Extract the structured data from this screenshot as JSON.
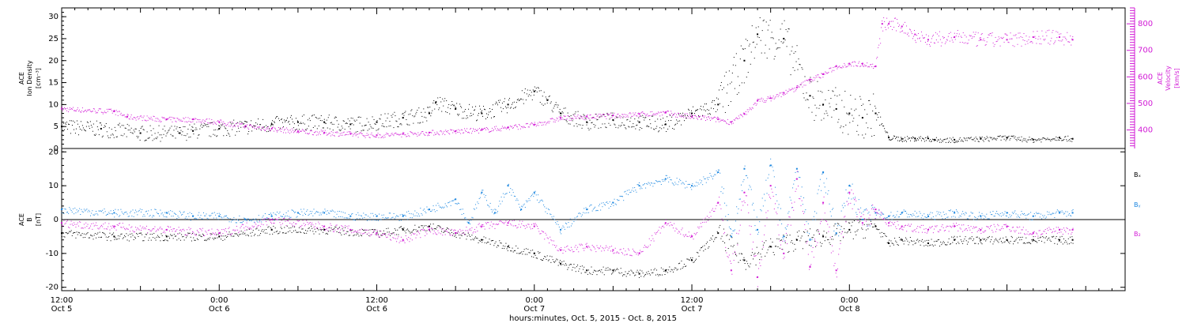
{
  "colors": {
    "bx": "#000000",
    "by": "#1a86e0",
    "bz": "#d21bd6",
    "density": "#000000",
    "velocity": "#d21bd6",
    "axis": "#000000"
  },
  "x_axis": {
    "footer": "hours:minutes, Oct.  5, 2015 - Oct.  8, 2015",
    "ticks": [
      {
        "time": "12:00",
        "date": "Oct 5"
      },
      {
        "time": "0:00",
        "date": "Oct 6"
      },
      {
        "time": "12:00",
        "date": "Oct 6"
      },
      {
        "time": "0:00",
        "date": "Oct 7"
      },
      {
        "time": "12:00",
        "date": "Oct 7"
      },
      {
        "time": "0:00",
        "date": "Oct 8"
      }
    ]
  },
  "panel1": {
    "left_label": [
      "ACE",
      "Ion Density",
      "[cm⁻³]"
    ],
    "right_label": [
      "ACE",
      "Velocity",
      "[km/s]"
    ]
  },
  "panel2": {
    "left_label": [
      "ACE",
      "B",
      "[nT]"
    ],
    "legend": [
      "Bₓ",
      "Bᵧ",
      "B₂"
    ]
  },
  "chart_data": [
    {
      "type": "scatter",
      "panel": "top",
      "x_unit": "hours since Oct 5 12:00",
      "xlim": [
        0,
        81
      ],
      "ylim": [
        0,
        32
      ],
      "y2lim": [
        330,
        860
      ],
      "yticks": [
        0,
        5,
        10,
        15,
        20,
        25,
        30
      ],
      "y2ticks": [
        400,
        500,
        600,
        700,
        800
      ],
      "series": [
        {
          "name": "Ion Density",
          "axis": "left",
          "x": [
            0,
            3,
            6,
            9,
            10,
            12,
            14,
            16,
            18,
            20,
            22,
            24,
            26,
            28,
            28.5,
            30,
            32,
            34,
            36,
            37,
            38,
            40,
            42,
            44,
            46,
            48,
            50,
            52,
            53,
            55,
            57,
            58,
            59,
            60,
            61,
            62,
            63,
            64,
            65,
            66,
            66.5,
            68,
            70,
            72,
            74,
            76,
            77
          ],
          "y": [
            5,
            4.5,
            3.5,
            3.5,
            4,
            4.5,
            5,
            5.5,
            6,
            6,
            5.5,
            6,
            7,
            8,
            10.5,
            9,
            8,
            10,
            13,
            11,
            8,
            6,
            6.5,
            6,
            5.5,
            8,
            10,
            20,
            26,
            25,
            12,
            10,
            9,
            8,
            7,
            8,
            2.5,
            2.2,
            2.3,
            2.3,
            2.0,
            2.0,
            2.2,
            2.5,
            2.0,
            2.5,
            2.2
          ]
        },
        {
          "name": "Velocity",
          "axis": "right",
          "x": [
            0,
            4,
            5,
            8,
            10,
            12,
            14,
            16,
            18,
            20,
            22,
            24,
            26,
            28,
            30,
            32,
            34,
            36,
            38,
            40,
            42,
            44,
            46,
            48,
            50,
            51,
            52,
            53,
            54,
            55,
            56,
            57,
            58,
            59,
            60,
            61,
            62,
            62.5,
            63,
            64,
            65,
            66,
            68,
            70,
            72,
            74,
            76,
            77
          ],
          "y": [
            480,
            470,
            450,
            440,
            440,
            430,
            415,
            405,
            395,
            390,
            385,
            380,
            385,
            390,
            395,
            400,
            410,
            420,
            445,
            450,
            455,
            460,
            465,
            450,
            440,
            430,
            460,
            510,
            520,
            540,
            560,
            590,
            610,
            640,
            650,
            650,
            640,
            800,
            800,
            790,
            760,
            740,
            750,
            740,
            740,
            750,
            750,
            740
          ]
        }
      ]
    },
    {
      "type": "scatter",
      "panel": "bottom",
      "x_unit": "hours since Oct 5 12:00",
      "xlim": [
        0,
        81
      ],
      "ylim": [
        -21,
        21
      ],
      "yticks": [
        -20,
        -10,
        0,
        10,
        20
      ],
      "series": [
        {
          "name": "Bx",
          "x": [
            0,
            4,
            8,
            12,
            16,
            20,
            24,
            26,
            28,
            30,
            32,
            34,
            36,
            38,
            40,
            42,
            44,
            46,
            48,
            50,
            52,
            54,
            56,
            58,
            60,
            62,
            63,
            64,
            66,
            68,
            70,
            72,
            74,
            76,
            77
          ],
          "y": [
            -4,
            -5,
            -5,
            -5,
            -3,
            -3,
            -4,
            -3,
            -2,
            -4,
            -6,
            -8,
            -10,
            -13,
            -15,
            -15,
            -16,
            -15,
            -12,
            -4,
            -12,
            -8,
            -6,
            -5,
            -3,
            -2,
            -7,
            -6,
            -7,
            -6,
            -6,
            -6,
            -6,
            -6,
            -6
          ]
        },
        {
          "name": "By",
          "x": [
            0,
            4,
            8,
            10,
            12,
            14,
            16,
            18,
            20,
            22,
            24,
            26,
            28,
            30,
            31,
            32,
            33,
            34,
            35,
            36,
            38,
            40,
            42,
            44,
            46,
            48,
            50,
            51,
            52,
            53,
            54,
            55,
            56,
            57,
            58,
            59,
            60,
            61,
            62,
            63,
            64,
            66,
            68,
            70,
            72,
            74,
            76,
            77
          ],
          "y": [
            3,
            2,
            2,
            1,
            1,
            0,
            1,
            2,
            2,
            1,
            1,
            1,
            3,
            6,
            -1,
            8,
            2,
            10,
            3,
            8,
            -3,
            3,
            5,
            10,
            12,
            10,
            14,
            -5,
            15,
            -3,
            16,
            -5,
            15,
            -6,
            14,
            -4,
            10,
            0,
            2,
            1,
            2,
            1,
            2,
            1,
            2,
            1,
            2,
            2
          ]
        },
        {
          "name": "Bz",
          "x": [
            0,
            4,
            8,
            12,
            16,
            20,
            22,
            24,
            26,
            28,
            30,
            32,
            34,
            36,
            38,
            40,
            42,
            44,
            46,
            48,
            50,
            51,
            52,
            53,
            54,
            55,
            56,
            57,
            58,
            59,
            60,
            61,
            62,
            63,
            64,
            66,
            68,
            70,
            72,
            74,
            76,
            77
          ],
          "y": [
            -1,
            -2,
            -3,
            -4,
            0,
            -2,
            -3,
            -4,
            -6,
            -3,
            -4,
            -2,
            -1,
            -2,
            -9,
            -8,
            -9,
            -10,
            -1,
            -5,
            5,
            -15,
            8,
            -17,
            10,
            -10,
            12,
            -14,
            5,
            -15,
            8,
            -1,
            3,
            -1,
            -2,
            -3,
            -2,
            -3,
            -2,
            -4,
            -3,
            -3
          ]
        }
      ]
    }
  ]
}
